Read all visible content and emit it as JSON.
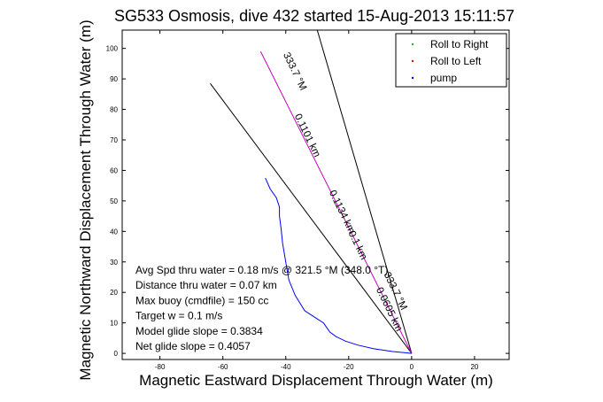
{
  "chart_data": {
    "type": "line",
    "title": "SG533 Osmosis, dive 432 started 15-Aug-2013 15:11:57",
    "xlabel": "Magnetic Eastward Displacement Through Water (m)",
    "ylabel": "Magnetic Northward Displacement Through Water (m)",
    "xlim": [
      -92,
      31
    ],
    "ylim": [
      -2,
      106
    ],
    "xticks": [
      -80,
      -60,
      -40,
      -20,
      0,
      20
    ],
    "yticks": [
      0,
      10,
      20,
      30,
      40,
      50,
      60,
      70,
      80,
      90,
      100
    ],
    "grid": false,
    "legend_position": "top-right",
    "legend": [
      {
        "label": "Roll to Right",
        "color": "#00c800"
      },
      {
        "label": "Roll to Left",
        "color": "#ff0000"
      },
      {
        "label": "pump",
        "color": "#0000ff"
      }
    ],
    "track": {
      "color": "#0000ff",
      "x": [
        -46.5,
        -45,
        -43,
        -42,
        -42,
        -41.5,
        -41,
        -40,
        -39,
        -37,
        -34,
        -31,
        -28,
        -27,
        -26,
        -24,
        -21,
        -17,
        -12,
        -6,
        -2,
        0
      ],
      "y": [
        57.5,
        54,
        51,
        48,
        45,
        41,
        36,
        30,
        24,
        19,
        14,
        12,
        10,
        8.5,
        7,
        5.5,
        4,
        2.7,
        1.5,
        0.6,
        0.2,
        0
      ]
    },
    "heading_line": {
      "color": "#cc00cc",
      "x": [
        0,
        -48
      ],
      "y": [
        0,
        99
      ]
    },
    "bound_lines": [
      {
        "color": "#000000",
        "x": [
          0,
          -64
        ],
        "y": [
          0,
          88.5
        ]
      },
      {
        "color": "#000000",
        "x": [
          0,
          -30
        ],
        "y": [
          0,
          106
        ]
      }
    ],
    "line_labels": [
      {
        "text": "333.7 °M",
        "x": -38,
        "y": 92,
        "angle": 64
      },
      {
        "text": "0.1101 km",
        "x": -34,
        "y": 71,
        "angle": 64
      },
      {
        "text": "0.1134 km",
        "x": -23,
        "y": 46,
        "angle": 64
      },
      {
        "text": "0.1 km",
        "x": -18,
        "y": 35,
        "angle": 64
      },
      {
        "text": "0.0605 km",
        "x": -8,
        "y": 14,
        "angle": 64
      },
      {
        "text": "333.7 °M",
        "x": -6,
        "y": 20,
        "angle": 64
      }
    ],
    "annotations": [
      "Avg Spd thru water =  0.18 m/s @ 321.5 °M (348.0 °T)",
      "Distance thru water =  0.07 km",
      "Max buoy (cmdfile) = 150 cc",
      "Target w = 0.1 m/s",
      "Model glide slope = 0.3834",
      "Net glide slope = 0.4057"
    ]
  }
}
